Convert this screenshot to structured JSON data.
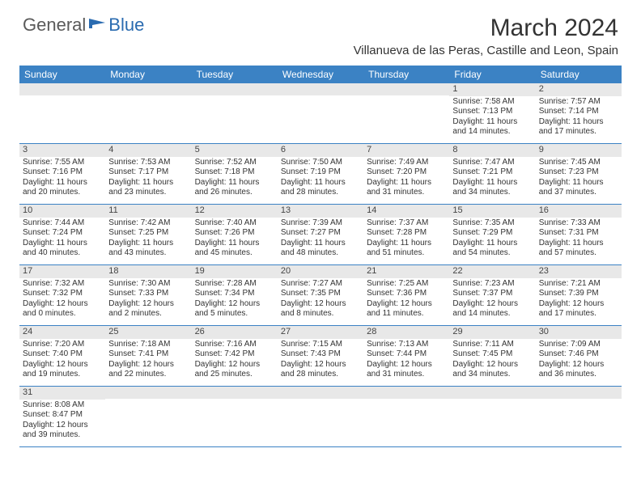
{
  "logo": {
    "general": "General",
    "blue": "Blue"
  },
  "title": "March 2024",
  "location": "Villanueva de las Peras, Castille and Leon, Spain",
  "colors": {
    "header_bg": "#3b82c4",
    "header_text": "#ffffff",
    "daynum_bg": "#e8e8e8",
    "border": "#3b82c4",
    "logo_gray": "#5a5a5a",
    "logo_blue": "#2a6bb0"
  },
  "day_names": [
    "Sunday",
    "Monday",
    "Tuesday",
    "Wednesday",
    "Thursday",
    "Friday",
    "Saturday"
  ],
  "weeks": [
    [
      {
        "n": "",
        "sr": "",
        "ss": "",
        "dl": ""
      },
      {
        "n": "",
        "sr": "",
        "ss": "",
        "dl": ""
      },
      {
        "n": "",
        "sr": "",
        "ss": "",
        "dl": ""
      },
      {
        "n": "",
        "sr": "",
        "ss": "",
        "dl": ""
      },
      {
        "n": "",
        "sr": "",
        "ss": "",
        "dl": ""
      },
      {
        "n": "1",
        "sr": "Sunrise: 7:58 AM",
        "ss": "Sunset: 7:13 PM",
        "dl": "Daylight: 11 hours and 14 minutes."
      },
      {
        "n": "2",
        "sr": "Sunrise: 7:57 AM",
        "ss": "Sunset: 7:14 PM",
        "dl": "Daylight: 11 hours and 17 minutes."
      }
    ],
    [
      {
        "n": "3",
        "sr": "Sunrise: 7:55 AM",
        "ss": "Sunset: 7:16 PM",
        "dl": "Daylight: 11 hours and 20 minutes."
      },
      {
        "n": "4",
        "sr": "Sunrise: 7:53 AM",
        "ss": "Sunset: 7:17 PM",
        "dl": "Daylight: 11 hours and 23 minutes."
      },
      {
        "n": "5",
        "sr": "Sunrise: 7:52 AM",
        "ss": "Sunset: 7:18 PM",
        "dl": "Daylight: 11 hours and 26 minutes."
      },
      {
        "n": "6",
        "sr": "Sunrise: 7:50 AM",
        "ss": "Sunset: 7:19 PM",
        "dl": "Daylight: 11 hours and 28 minutes."
      },
      {
        "n": "7",
        "sr": "Sunrise: 7:49 AM",
        "ss": "Sunset: 7:20 PM",
        "dl": "Daylight: 11 hours and 31 minutes."
      },
      {
        "n": "8",
        "sr": "Sunrise: 7:47 AM",
        "ss": "Sunset: 7:21 PM",
        "dl": "Daylight: 11 hours and 34 minutes."
      },
      {
        "n": "9",
        "sr": "Sunrise: 7:45 AM",
        "ss": "Sunset: 7:23 PM",
        "dl": "Daylight: 11 hours and 37 minutes."
      }
    ],
    [
      {
        "n": "10",
        "sr": "Sunrise: 7:44 AM",
        "ss": "Sunset: 7:24 PM",
        "dl": "Daylight: 11 hours and 40 minutes."
      },
      {
        "n": "11",
        "sr": "Sunrise: 7:42 AM",
        "ss": "Sunset: 7:25 PM",
        "dl": "Daylight: 11 hours and 43 minutes."
      },
      {
        "n": "12",
        "sr": "Sunrise: 7:40 AM",
        "ss": "Sunset: 7:26 PM",
        "dl": "Daylight: 11 hours and 45 minutes."
      },
      {
        "n": "13",
        "sr": "Sunrise: 7:39 AM",
        "ss": "Sunset: 7:27 PM",
        "dl": "Daylight: 11 hours and 48 minutes."
      },
      {
        "n": "14",
        "sr": "Sunrise: 7:37 AM",
        "ss": "Sunset: 7:28 PM",
        "dl": "Daylight: 11 hours and 51 minutes."
      },
      {
        "n": "15",
        "sr": "Sunrise: 7:35 AM",
        "ss": "Sunset: 7:29 PM",
        "dl": "Daylight: 11 hours and 54 minutes."
      },
      {
        "n": "16",
        "sr": "Sunrise: 7:33 AM",
        "ss": "Sunset: 7:31 PM",
        "dl": "Daylight: 11 hours and 57 minutes."
      }
    ],
    [
      {
        "n": "17",
        "sr": "Sunrise: 7:32 AM",
        "ss": "Sunset: 7:32 PM",
        "dl": "Daylight: 12 hours and 0 minutes."
      },
      {
        "n": "18",
        "sr": "Sunrise: 7:30 AM",
        "ss": "Sunset: 7:33 PM",
        "dl": "Daylight: 12 hours and 2 minutes."
      },
      {
        "n": "19",
        "sr": "Sunrise: 7:28 AM",
        "ss": "Sunset: 7:34 PM",
        "dl": "Daylight: 12 hours and 5 minutes."
      },
      {
        "n": "20",
        "sr": "Sunrise: 7:27 AM",
        "ss": "Sunset: 7:35 PM",
        "dl": "Daylight: 12 hours and 8 minutes."
      },
      {
        "n": "21",
        "sr": "Sunrise: 7:25 AM",
        "ss": "Sunset: 7:36 PM",
        "dl": "Daylight: 12 hours and 11 minutes."
      },
      {
        "n": "22",
        "sr": "Sunrise: 7:23 AM",
        "ss": "Sunset: 7:37 PM",
        "dl": "Daylight: 12 hours and 14 minutes."
      },
      {
        "n": "23",
        "sr": "Sunrise: 7:21 AM",
        "ss": "Sunset: 7:39 PM",
        "dl": "Daylight: 12 hours and 17 minutes."
      }
    ],
    [
      {
        "n": "24",
        "sr": "Sunrise: 7:20 AM",
        "ss": "Sunset: 7:40 PM",
        "dl": "Daylight: 12 hours and 19 minutes."
      },
      {
        "n": "25",
        "sr": "Sunrise: 7:18 AM",
        "ss": "Sunset: 7:41 PM",
        "dl": "Daylight: 12 hours and 22 minutes."
      },
      {
        "n": "26",
        "sr": "Sunrise: 7:16 AM",
        "ss": "Sunset: 7:42 PM",
        "dl": "Daylight: 12 hours and 25 minutes."
      },
      {
        "n": "27",
        "sr": "Sunrise: 7:15 AM",
        "ss": "Sunset: 7:43 PM",
        "dl": "Daylight: 12 hours and 28 minutes."
      },
      {
        "n": "28",
        "sr": "Sunrise: 7:13 AM",
        "ss": "Sunset: 7:44 PM",
        "dl": "Daylight: 12 hours and 31 minutes."
      },
      {
        "n": "29",
        "sr": "Sunrise: 7:11 AM",
        "ss": "Sunset: 7:45 PM",
        "dl": "Daylight: 12 hours and 34 minutes."
      },
      {
        "n": "30",
        "sr": "Sunrise: 7:09 AM",
        "ss": "Sunset: 7:46 PM",
        "dl": "Daylight: 12 hours and 36 minutes."
      }
    ],
    [
      {
        "n": "31",
        "sr": "Sunrise: 8:08 AM",
        "ss": "Sunset: 8:47 PM",
        "dl": "Daylight: 12 hours and 39 minutes."
      },
      {
        "n": "",
        "sr": "",
        "ss": "",
        "dl": ""
      },
      {
        "n": "",
        "sr": "",
        "ss": "",
        "dl": ""
      },
      {
        "n": "",
        "sr": "",
        "ss": "",
        "dl": ""
      },
      {
        "n": "",
        "sr": "",
        "ss": "",
        "dl": ""
      },
      {
        "n": "",
        "sr": "",
        "ss": "",
        "dl": ""
      },
      {
        "n": "",
        "sr": "",
        "ss": "",
        "dl": ""
      }
    ]
  ]
}
